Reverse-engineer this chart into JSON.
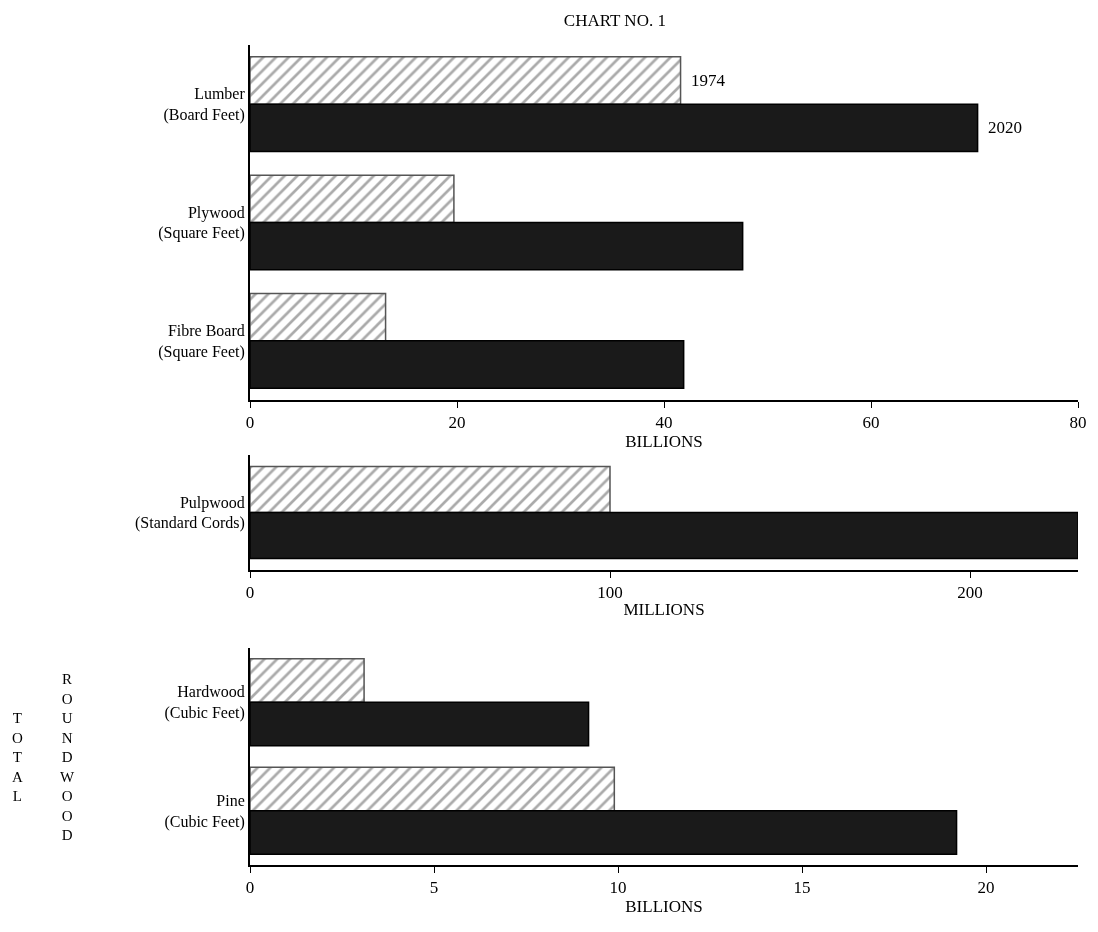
{
  "chart_data": [
    {
      "type": "bar",
      "orientation": "horizontal",
      "title": "CHART NO. 1",
      "xlabel": "BILLIONS",
      "categories": [
        "Lumber\n(Board Feet)",
        "Plywood\n(Square Feet)",
        "Fibre Board\n(Square Feet)"
      ],
      "series": [
        {
          "name": "1974",
          "color": "#555555",
          "values": [
            41.6,
            19.7,
            13.1
          ]
        },
        {
          "name": "2020",
          "color": "#1a1a1a",
          "values": [
            70.3,
            47.6,
            41.9
          ]
        }
      ],
      "xlim": [
        0,
        80
      ],
      "xticks": [
        0,
        20,
        40,
        60,
        80
      ],
      "legend": false
    },
    {
      "type": "bar",
      "orientation": "horizontal",
      "xlabel": "MILLIONS",
      "categories": [
        "Pulpwood\n(Standard Cords)"
      ],
      "series": [
        {
          "color": "#555555",
          "values": [
            100
          ]
        },
        {
          "color": "#1a1a1a",
          "values": [
            230
          ]
        }
      ],
      "xlim": [
        0,
        230
      ],
      "xticks": [
        0,
        100,
        200
      ],
      "legend": false
    },
    {
      "type": "bar",
      "orientation": "horizontal",
      "xlabel": "BILLIONS",
      "annotations": [
        "TOTAL",
        "ROUNDWOOD"
      ],
      "categories": [
        "Hardwood\n(Cubic Feet)",
        "Pine\n(Cubic Feet)"
      ],
      "series": [
        {
          "color": "#555555",
          "values": [
            3.1,
            9.9
          ]
        },
        {
          "color": "#1a1a1a",
          "values": [
            9.2,
            19.2
          ]
        }
      ],
      "xlim": [
        0,
        22.5
      ],
      "xticks": [
        0,
        5,
        10,
        15,
        20
      ],
      "legend": false
    }
  ]
}
